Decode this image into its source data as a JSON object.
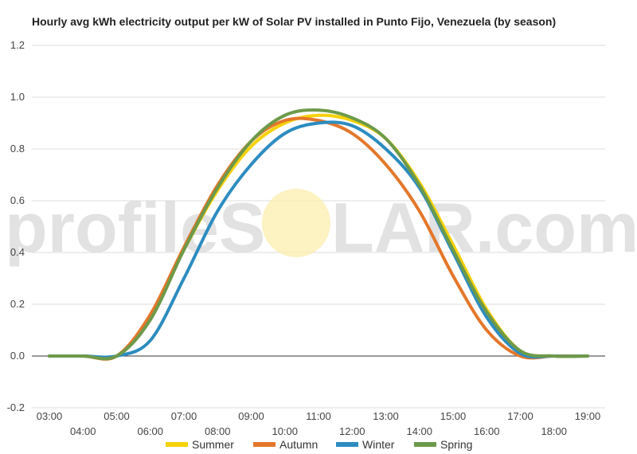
{
  "chart_data": {
    "type": "line",
    "title": "Hourly avg kWh electricity output per kW of Solar PV installed in Punto Fijo, Venezuela (by season)",
    "xlabel": "",
    "ylabel": "",
    "x": [
      "03:00",
      "04:00",
      "05:00",
      "06:00",
      "07:00",
      "08:00",
      "09:00",
      "10:00",
      "11:00",
      "12:00",
      "13:00",
      "14:00",
      "15:00",
      "16:00",
      "17:00",
      "18:00",
      "19:00"
    ],
    "xlim": [
      3,
      19
    ],
    "ylim": [
      -0.2,
      1.2
    ],
    "yticks": [
      -0.2,
      0.0,
      0.2,
      0.4,
      0.6,
      0.8,
      1.0,
      1.2
    ],
    "ytick_labels": [
      "-0.2",
      "0.0",
      "0.2",
      "0.4",
      "0.6",
      "0.8",
      "1.0",
      "1.2"
    ],
    "series": [
      {
        "name": "Summer",
        "color": "#F6D20A",
        "values": [
          0.0,
          0.0,
          0.0,
          0.15,
          0.41,
          0.64,
          0.81,
          0.9,
          0.93,
          0.91,
          0.84,
          0.67,
          0.43,
          0.18,
          0.02,
          0.0,
          0.0
        ]
      },
      {
        "name": "Autumn",
        "color": "#E4772A",
        "values": [
          0.0,
          0.0,
          0.0,
          0.16,
          0.42,
          0.66,
          0.83,
          0.91,
          0.91,
          0.86,
          0.74,
          0.56,
          0.31,
          0.1,
          0.0,
          0.0,
          0.0
        ]
      },
      {
        "name": "Winter",
        "color": "#2C8CC0",
        "values": [
          0.0,
          0.0,
          0.0,
          0.06,
          0.3,
          0.56,
          0.74,
          0.86,
          0.9,
          0.89,
          0.8,
          0.65,
          0.4,
          0.15,
          0.01,
          0.0,
          0.0
        ]
      },
      {
        "name": "Spring",
        "color": "#6D9A4A",
        "values": [
          0.0,
          0.0,
          0.0,
          0.14,
          0.41,
          0.65,
          0.83,
          0.93,
          0.95,
          0.92,
          0.84,
          0.66,
          0.41,
          0.17,
          0.02,
          0.0,
          0.0
        ]
      }
    ],
    "grid": true,
    "legend_position": "bottom"
  },
  "watermark": {
    "left_text": "profileS",
    "right_text": "LAR.com"
  }
}
